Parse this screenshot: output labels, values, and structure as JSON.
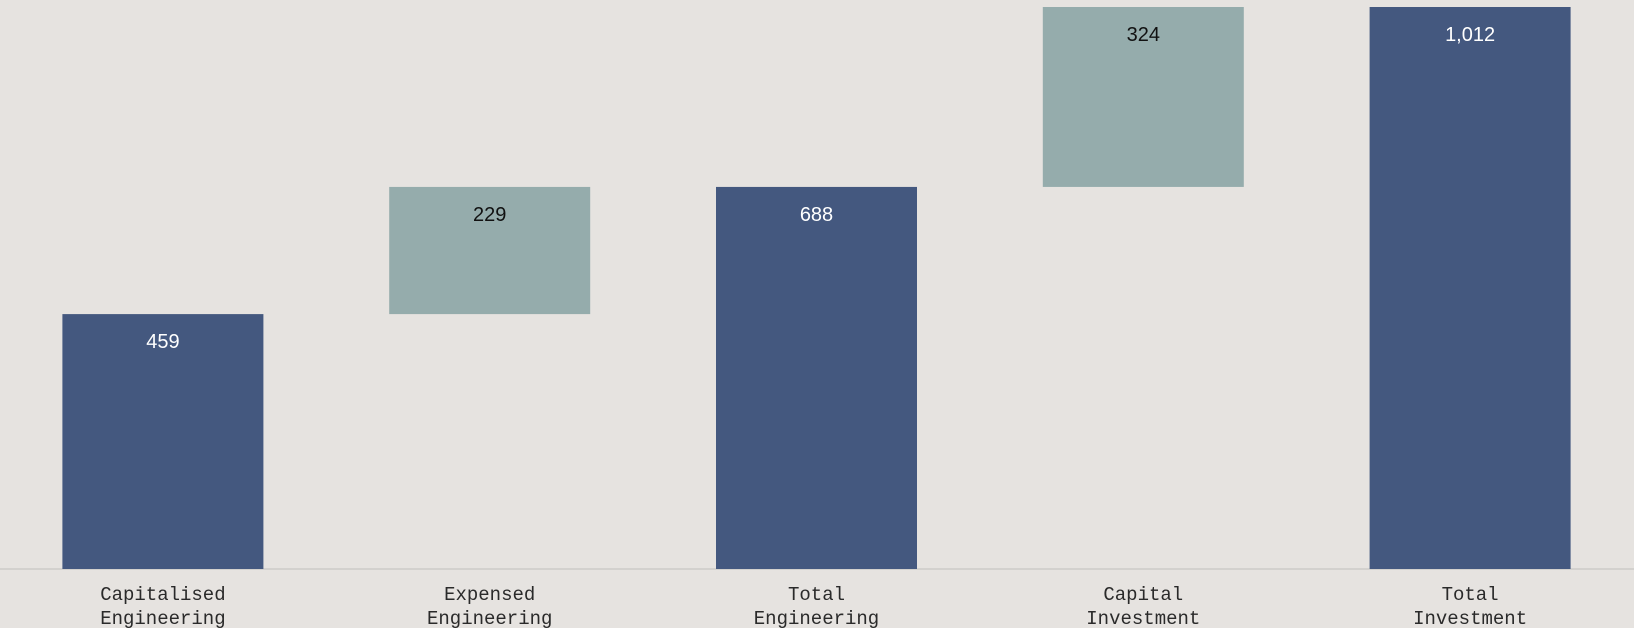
{
  "chart_data": {
    "type": "waterfall",
    "categories": [
      [
        "Capitalised",
        "Engineering"
      ],
      [
        "Expensed",
        "Engineering"
      ],
      [
        "Total",
        "Engineering"
      ],
      [
        "Capital",
        "Investment"
      ],
      [
        "Total",
        "Investment"
      ]
    ],
    "bars": [
      {
        "kind": "total",
        "start": 0,
        "end": 459,
        "value": 459,
        "label": "459"
      },
      {
        "kind": "increment",
        "start": 459,
        "end": 688,
        "value": 229,
        "label": "229"
      },
      {
        "kind": "total",
        "start": 0,
        "end": 688,
        "value": 688,
        "label": "688"
      },
      {
        "kind": "increment",
        "start": 688,
        "end": 1012,
        "value": 324,
        "label": "324"
      },
      {
        "kind": "total",
        "start": 0,
        "end": 1012,
        "value": 1012,
        "label": "1,012"
      }
    ],
    "ylim": [
      0,
      1012
    ],
    "colors": {
      "total": "#44587f",
      "increment": "#95acac",
      "total_label": "#ffffff",
      "increment_label": "#111111",
      "background": "#e6e3e0",
      "baseline": "#d3d1ce"
    }
  }
}
